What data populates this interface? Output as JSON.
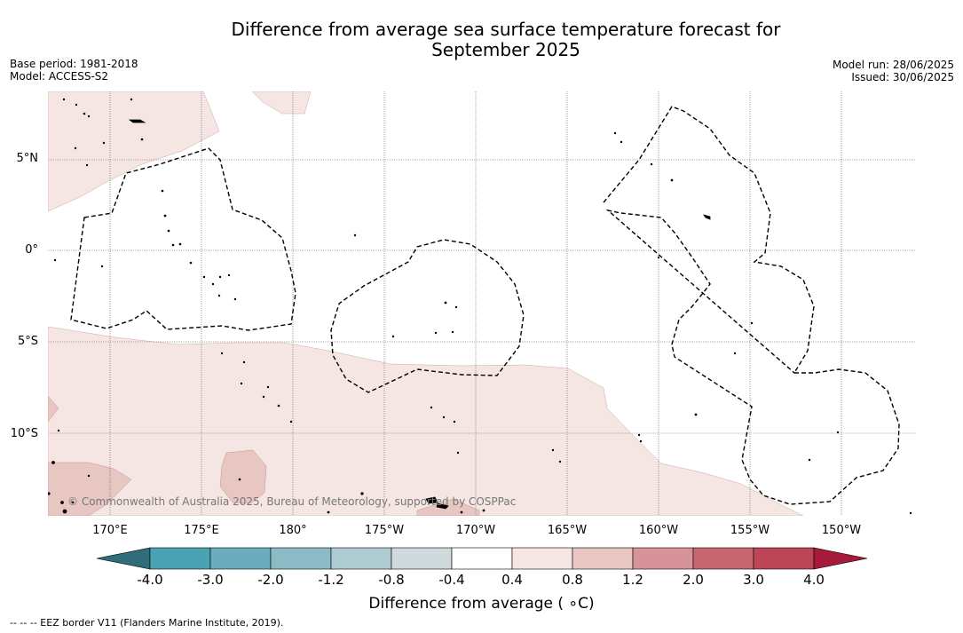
{
  "title_line1": "Difference from average sea surface temperature forecast for",
  "title_line2": "September 2025",
  "base_period": "Base period: 1981-2018",
  "model": "Model: ACCESS-S2",
  "model_run": "Model run: 28/06/2025",
  "issued": "Issued: 30/06/2025",
  "lat_labels": [
    "5°N",
    "0°",
    "5°S",
    "10°S"
  ],
  "lon_labels": [
    "170°E",
    "175°E",
    "180°",
    "175°W",
    "170°W",
    "165°W",
    "160°W",
    "155°W",
    "150°W"
  ],
  "colorbar": {
    "ticks": [
      "-4.0",
      "-3.0",
      "-2.0",
      "-1.2",
      "-0.8",
      "-0.4",
      "0.4",
      "0.8",
      "1.2",
      "2.0",
      "3.0",
      "4.0"
    ],
    "colors": [
      "#2f6e78",
      "#4aa3b3",
      "#6cadbd",
      "#8cbbc6",
      "#adcbd1",
      "#cfdadc",
      "#ffffff",
      "#f5e6e4",
      "#e8c6c1",
      "#d6939a",
      "#c8666f",
      "#bc4656",
      "#a81a3a"
    ],
    "title": "Difference from average ( ∘C)"
  },
  "copyright": "© Commonwealth of Australia 2025, Bureau of Meteorology, supported by COSPPac",
  "footer": "-- -- -- EEZ border V11 (Flanders Marine Institute, 2019)."
}
